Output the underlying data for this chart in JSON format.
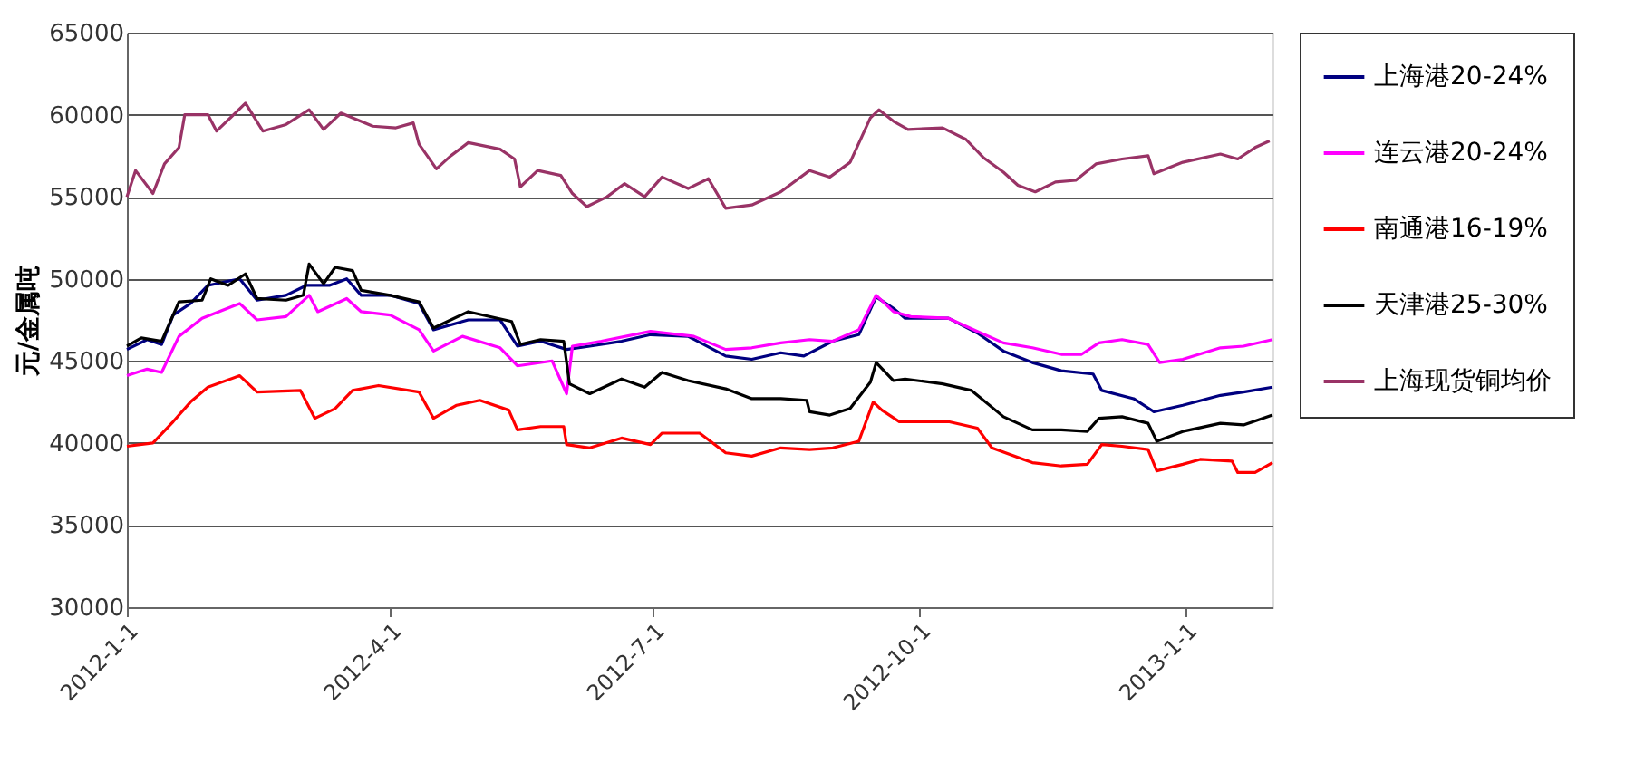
{
  "chart_data": {
    "type": "line",
    "ylabel": "元/金属吨",
    "xlim": [
      "2012-01-01",
      "2013-01-31"
    ],
    "ylim": [
      30000,
      65000
    ],
    "yticks": [
      30000,
      35000,
      40000,
      45000,
      50000,
      55000,
      60000,
      65000
    ],
    "xticks": [
      {
        "value": "2012-01-01",
        "label": "2012-1-1"
      },
      {
        "value": "2012-04-01",
        "label": "2012-4-1"
      },
      {
        "value": "2012-07-01",
        "label": "2012-7-1"
      },
      {
        "value": "2012-10-01",
        "label": "2012-10-1"
      },
      {
        "value": "2013-01-01",
        "label": "2013-1-1"
      }
    ],
    "grid": "y",
    "legend": "right",
    "line_style": "solid",
    "marker": "none",
    "series": [
      {
        "name": "上海港20-24%",
        "color": "#000080",
        "x": [
          "2012-01-01",
          "2012-01-08",
          "2012-01-13",
          "2012-01-17",
          "2012-01-23",
          "2012-01-29",
          "2012-02-09",
          "2012-02-15",
          "2012-02-25",
          "2012-03-03",
          "2012-03-11",
          "2012-03-17",
          "2012-03-22",
          "2012-04-01",
          "2012-04-11",
          "2012-04-16",
          "2012-04-28",
          "2012-05-09",
          "2012-05-15",
          "2012-05-23",
          "2012-06-01",
          "2012-06-09",
          "2012-06-20",
          "2012-06-30",
          "2012-07-13",
          "2012-07-26",
          "2012-08-04",
          "2012-08-14",
          "2012-08-22",
          "2012-09-01",
          "2012-09-10",
          "2012-09-16",
          "2012-09-22",
          "2012-09-26",
          "2012-10-11",
          "2012-10-21",
          "2012-10-30",
          "2012-11-09",
          "2012-11-19",
          "2012-11-30",
          "2012-12-03",
          "2012-12-14",
          "2012-12-21",
          "2012-12-31",
          "2013-01-13",
          "2013-01-21",
          "2013-01-31"
        ],
        "values": [
          45700,
          46300,
          46000,
          47800,
          48500,
          49600,
          50000,
          48700,
          49000,
          49600,
          49600,
          50000,
          49000,
          49000,
          48500,
          46900,
          47500,
          47500,
          45900,
          46200,
          45700,
          45900,
          46200,
          46600,
          46500,
          45300,
          45100,
          45500,
          45300,
          46200,
          46600,
          48900,
          48200,
          47600,
          47600,
          46700,
          45600,
          44900,
          44400,
          44200,
          43200,
          42700,
          41900,
          42300,
          42900,
          43100,
          43400
        ]
      },
      {
        "name": "连云港20-24%",
        "color": "#ff00ff",
        "x": [
          "2012-01-01",
          "2012-01-08",
          "2012-01-13",
          "2012-01-19",
          "2012-01-27",
          "2012-02-09",
          "2012-02-15",
          "2012-02-25",
          "2012-03-04",
          "2012-03-07",
          "2012-03-17",
          "2012-03-22",
          "2012-04-01",
          "2012-04-11",
          "2012-04-16",
          "2012-04-26",
          "2012-05-09",
          "2012-05-15",
          "2012-05-27",
          "2012-06-01",
          "2012-06-03",
          "2012-06-13",
          "2012-06-30",
          "2012-07-15",
          "2012-07-26",
          "2012-08-04",
          "2012-08-14",
          "2012-08-24",
          "2012-09-01",
          "2012-09-10",
          "2012-09-16",
          "2012-09-22",
          "2012-09-28",
          "2012-10-11",
          "2012-10-21",
          "2012-10-30",
          "2012-11-09",
          "2012-11-19",
          "2012-11-26",
          "2012-12-02",
          "2012-12-10",
          "2012-12-19",
          "2012-12-23",
          "2012-12-31",
          "2013-01-13",
          "2013-01-21",
          "2013-01-31"
        ],
        "values": [
          44100,
          44500,
          44300,
          46500,
          47600,
          48500,
          47500,
          47700,
          49000,
          48000,
          48800,
          48000,
          47800,
          46900,
          45600,
          46500,
          45800,
          44700,
          45000,
          43000,
          45900,
          46200,
          46800,
          46500,
          45700,
          45800,
          46100,
          46300,
          46200,
          46900,
          49000,
          48000,
          47700,
          47600,
          46800,
          46100,
          45800,
          45400,
          45400,
          46100,
          46300,
          46000,
          44900,
          45100,
          45800,
          45900,
          46300
        ]
      },
      {
        "name": "南通港16-19%",
        "color": "#ff0000",
        "x": [
          "2012-01-01",
          "2012-01-10",
          "2012-01-17",
          "2012-01-23",
          "2012-01-29",
          "2012-02-09",
          "2012-02-15",
          "2012-03-01",
          "2012-03-06",
          "2012-03-13",
          "2012-03-19",
          "2012-03-28",
          "2012-04-11",
          "2012-04-16",
          "2012-04-24",
          "2012-05-02",
          "2012-05-12",
          "2012-05-15",
          "2012-05-23",
          "2012-05-31",
          "2012-06-01",
          "2012-06-09",
          "2012-06-20",
          "2012-06-30",
          "2012-07-04",
          "2012-07-17",
          "2012-07-26",
          "2012-08-04",
          "2012-08-14",
          "2012-08-24",
          "2012-09-01",
          "2012-09-10",
          "2012-09-15",
          "2012-09-18",
          "2012-09-24",
          "2012-10-11",
          "2012-10-21",
          "2012-10-26",
          "2012-11-09",
          "2012-11-19",
          "2012-11-28",
          "2012-12-03",
          "2012-12-10",
          "2012-12-19",
          "2012-12-22",
          "2012-12-31",
          "2013-01-06",
          "2013-01-17",
          "2013-01-19",
          "2013-01-25",
          "2013-01-31"
        ],
        "values": [
          39800,
          40000,
          41300,
          42500,
          43400,
          44100,
          43100,
          43200,
          41500,
          42100,
          43200,
          43500,
          43100,
          41500,
          42300,
          42600,
          42000,
          40800,
          41000,
          41000,
          39900,
          39700,
          40300,
          39900,
          40600,
          40600,
          39400,
          39200,
          39700,
          39600,
          39700,
          40100,
          42500,
          42000,
          41300,
          41300,
          40900,
          39700,
          38800,
          38600,
          38700,
          39900,
          39800,
          39600,
          38300,
          38700,
          39000,
          38900,
          38200,
          38200,
          38800
        ]
      },
      {
        "name": "天津港25-30%",
        "color": "#000000",
        "x": [
          "2012-01-01",
          "2012-01-06",
          "2012-01-13",
          "2012-01-19",
          "2012-01-27",
          "2012-01-30",
          "2012-02-05",
          "2012-02-11",
          "2012-02-15",
          "2012-02-25",
          "2012-03-02",
          "2012-03-04",
          "2012-03-09",
          "2012-03-13",
          "2012-03-19",
          "2012-03-22",
          "2012-04-01",
          "2012-04-11",
          "2012-04-16",
          "2012-04-28",
          "2012-05-13",
          "2012-05-16",
          "2012-05-23",
          "2012-05-31",
          "2012-06-02",
          "2012-06-09",
          "2012-06-20",
          "2012-06-28",
          "2012-07-04",
          "2012-07-13",
          "2012-07-26",
          "2012-08-04",
          "2012-08-14",
          "2012-08-23",
          "2012-08-24",
          "2012-08-31",
          "2012-09-07",
          "2012-09-14",
          "2012-09-16",
          "2012-09-22",
          "2012-09-26",
          "2012-10-09",
          "2012-10-19",
          "2012-10-30",
          "2012-11-09",
          "2012-11-19",
          "2012-11-28",
          "2012-12-02",
          "2012-12-10",
          "2012-12-19",
          "2012-12-22",
          "2012-12-31",
          "2013-01-13",
          "2013-01-21",
          "2013-01-31"
        ],
        "values": [
          45900,
          46400,
          46200,
          48600,
          48700,
          50000,
          49600,
          50300,
          48800,
          48700,
          49000,
          50900,
          49700,
          50700,
          50500,
          49300,
          49000,
          48600,
          47000,
          48000,
          47400,
          46000,
          46300,
          46200,
          43600,
          43000,
          43900,
          43400,
          44300,
          43800,
          43300,
          42700,
          42700,
          42600,
          41900,
          41700,
          42100,
          43700,
          44900,
          43800,
          43900,
          43600,
          43200,
          41600,
          40800,
          40800,
          40700,
          41500,
          41600,
          41200,
          40100,
          40700,
          41200,
          41100,
          41700
        ]
      },
      {
        "name": "上海现货铜均价",
        "color": "#993366",
        "x": [
          "2012-01-01",
          "2012-01-04",
          "2012-01-10",
          "2012-01-14",
          "2012-01-19",
          "2012-01-21",
          "2012-01-29",
          "2012-02-01",
          "2012-02-11",
          "2012-02-17",
          "2012-02-25",
          "2012-03-04",
          "2012-03-09",
          "2012-03-15",
          "2012-03-26",
          "2012-04-03",
          "2012-04-09",
          "2012-04-11",
          "2012-04-17",
          "2012-04-22",
          "2012-04-28",
          "2012-05-09",
          "2012-05-14",
          "2012-05-16",
          "2012-05-22",
          "2012-05-30",
          "2012-06-03",
          "2012-06-08",
          "2012-06-15",
          "2012-06-21",
          "2012-06-28",
          "2012-07-04",
          "2012-07-13",
          "2012-07-20",
          "2012-07-26",
          "2012-08-04",
          "2012-08-14",
          "2012-08-24",
          "2012-08-31",
          "2012-09-07",
          "2012-09-14",
          "2012-09-17",
          "2012-09-22",
          "2012-09-27",
          "2012-10-09",
          "2012-10-17",
          "2012-10-23",
          "2012-10-30",
          "2012-11-04",
          "2012-11-10",
          "2012-11-17",
          "2012-11-24",
          "2012-12-01",
          "2012-12-10",
          "2012-12-19",
          "2012-12-21",
          "2012-12-31",
          "2013-01-13",
          "2013-01-19",
          "2013-01-25",
          "2013-01-30"
        ],
        "values": [
          55000,
          56600,
          55200,
          57000,
          58000,
          60000,
          60000,
          59000,
          60700,
          59000,
          59400,
          60300,
          59100,
          60100,
          59300,
          59200,
          59500,
          58200,
          56700,
          57500,
          58300,
          57900,
          57300,
          55600,
          56600,
          56300,
          55200,
          54400,
          55000,
          55800,
          55000,
          56200,
          55500,
          56100,
          54300,
          54500,
          55300,
          56600,
          56200,
          57100,
          59800,
          60300,
          59600,
          59100,
          59200,
          58500,
          57400,
          56500,
          55700,
          55300,
          55900,
          56000,
          57000,
          57300,
          57500,
          56400,
          57100,
          57600,
          57300,
          58000,
          58400
        ]
      }
    ]
  }
}
